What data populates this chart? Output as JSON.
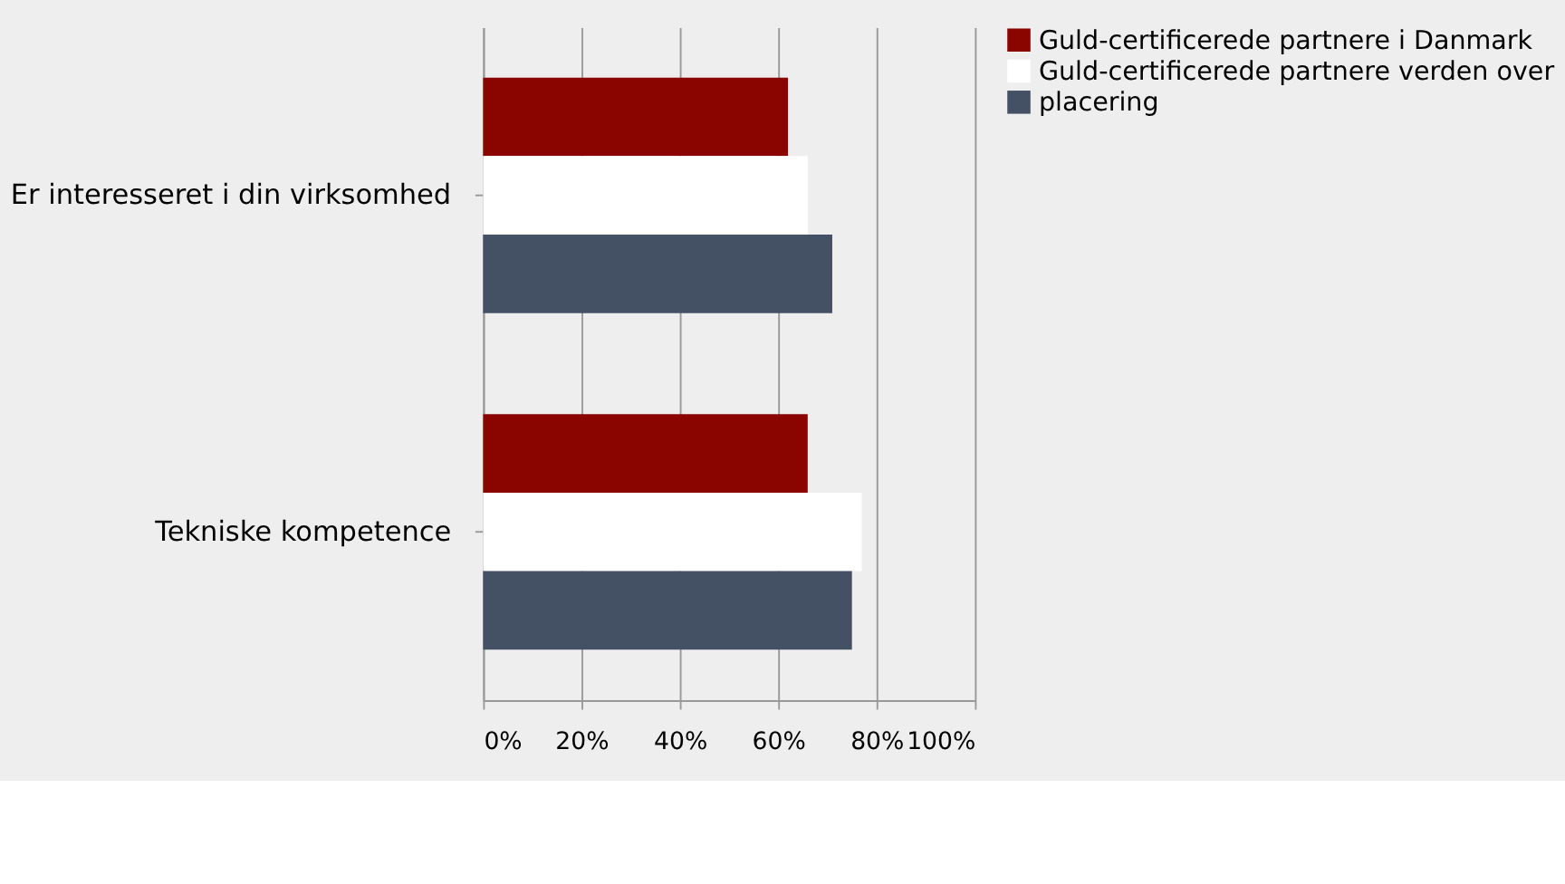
{
  "chart_data": {
    "type": "bar",
    "orientation": "horizontal",
    "categories": [
      "Er interesseret i din virksomhed",
      "Tekniske kompetence"
    ],
    "series": [
      {
        "name": "Guld-certificerede partnere i Danmark",
        "color": "#8b0500",
        "values": [
          62,
          66
        ]
      },
      {
        "name": "Guld-certificerede partnere verden over",
        "color": "#ffffff",
        "values": [
          66,
          77
        ]
      },
      {
        "name": "placering",
        "color": "#445064",
        "values": [
          71,
          75
        ]
      }
    ],
    "xlim": [
      0,
      100
    ],
    "xticks": [
      {
        "value": 0,
        "label": "0%"
      },
      {
        "value": 20,
        "label": "20%"
      },
      {
        "value": 40,
        "label": "40%"
      },
      {
        "value": 60,
        "label": "60%"
      },
      {
        "value": 80,
        "label": "80%"
      },
      {
        "value": 100,
        "label": "100%"
      }
    ],
    "grid": "x",
    "legend": "right"
  }
}
